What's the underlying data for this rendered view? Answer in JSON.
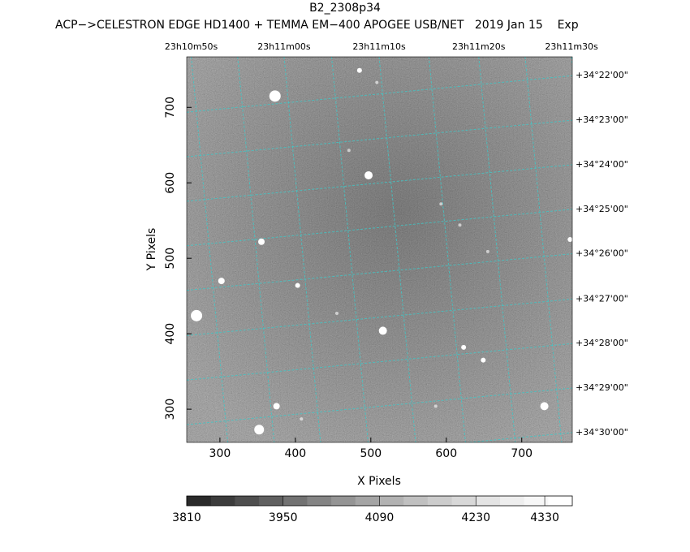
{
  "chart_data": {
    "type": "image",
    "title": "B2_2308p34",
    "subtitle": "ACP−>CELESTRON EDGE HD1400 + TEMMA EM−400 APOGEE USB/NET   2019 Jan 15    Exp",
    "x_label": "X Pixels",
    "y_label": "Y Pixels",
    "xlim": [
      256,
      767
    ],
    "ylim": [
      256,
      767
    ],
    "xticks": [
      300,
      400,
      500,
      600,
      700
    ],
    "yticks": [
      300,
      400,
      500,
      600,
      700
    ],
    "ra_ticks": [
      {
        "value": 262,
        "label": "23h10m50s"
      },
      {
        "value": 385,
        "label": "23h11m00s"
      },
      {
        "value": 511,
        "label": "23h11m10s"
      },
      {
        "value": 643,
        "label": "23h11m20s"
      },
      {
        "value": 766,
        "label": "23h11m30s"
      }
    ],
    "dec_ticks": [
      {
        "value": 742,
        "label": "+34°22'00\""
      },
      {
        "value": 683,
        "label": "+34°23'00\""
      },
      {
        "value": 624,
        "label": "+34°24'00\""
      },
      {
        "value": 565,
        "label": "+34°25'00\""
      },
      {
        "value": 506,
        "label": "+34°26'00\""
      },
      {
        "value": 446,
        "label": "+34°27'00\""
      },
      {
        "value": 387,
        "label": "+34°28'00\""
      },
      {
        "value": 328,
        "label": "+34°29'00\""
      },
      {
        "value": 269,
        "label": "+34°30'00\""
      }
    ],
    "grid_color": "#3fc8c8",
    "stars": {
      "color": "#ffffff",
      "x": [
        373,
        485,
        497,
        471,
        355,
        302,
        269,
        403,
        516,
        455,
        655,
        618,
        623,
        649,
        375,
        352,
        408,
        730,
        586,
        764,
        593,
        508
      ],
      "y": [
        715,
        749,
        610,
        643,
        522,
        470,
        424,
        464,
        404,
        427,
        509,
        544,
        382,
        365,
        304,
        273,
        287,
        304,
        304,
        525,
        572,
        733
      ],
      "sizes": [
        7,
        3,
        5,
        2,
        4,
        4,
        7,
        3,
        5,
        2,
        2,
        2,
        3,
        3,
        4,
        6,
        2,
        5,
        2,
        3,
        2,
        2
      ]
    },
    "colorbar": {
      "lim": [
        3810,
        4370
      ],
      "ticks": [
        3810,
        3950,
        4090,
        4230,
        4330
      ],
      "colors": [
        "#2a2a2a",
        "#3c3c3c",
        "#4e4e4e",
        "#606060",
        "#727272",
        "#848484",
        "#949494",
        "#a4a4a4",
        "#b2b2b2",
        "#c0c0c0",
        "#cccccc",
        "#d8d8d8",
        "#e4e4e4",
        "#eeeeee",
        "#f7f7f7",
        "#ffffff"
      ]
    }
  }
}
